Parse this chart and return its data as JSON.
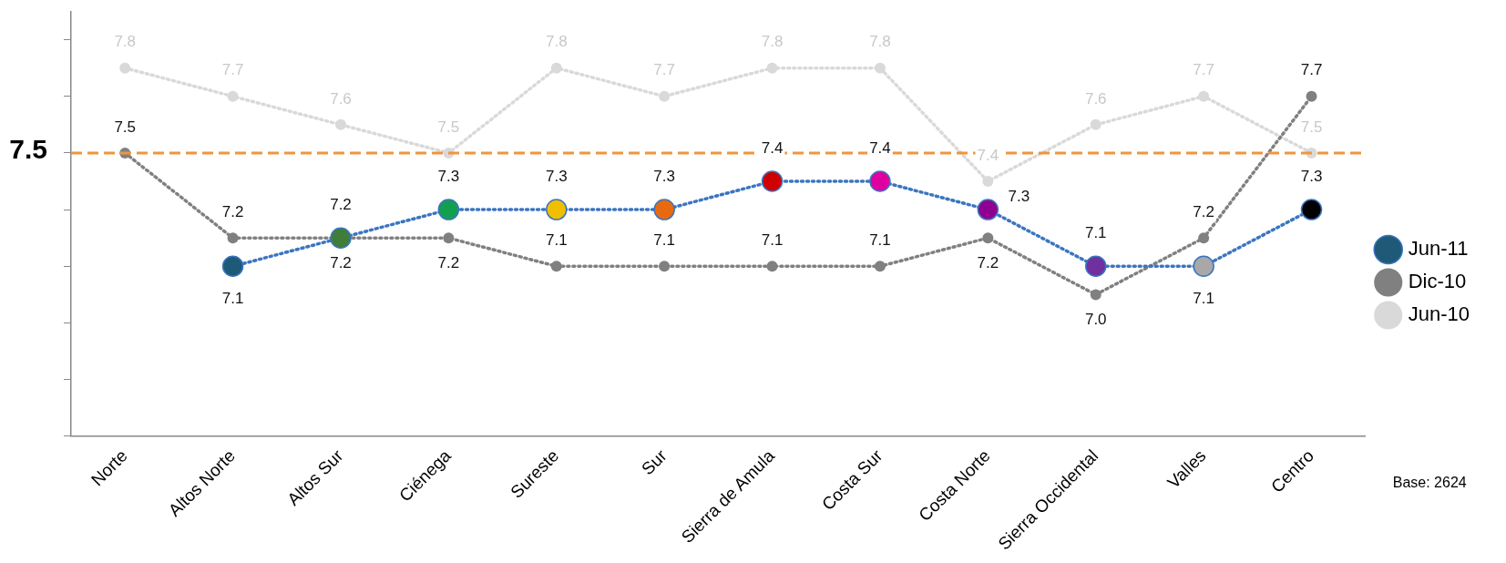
{
  "chart_data": {
    "type": "line",
    "categories": [
      "Norte",
      "Altos Norte",
      "Altos Sur",
      "Ciénega",
      "Sureste",
      "Sur",
      "Sierra de Amula",
      "Costa Sur",
      "Costa Norte",
      "Sierra Occidental",
      "Valles",
      "Centro"
    ],
    "series": [
      {
        "name": "Jun-11",
        "color": "#3b75c0",
        "colors": [
          "#1e5a78",
          "#1e5a78",
          "#3f7d3a",
          "#12a050",
          "#f0c000",
          "#e86a10",
          "#d00000",
          "#e000a0",
          "#900090",
          "#7030a0",
          "#a8a8a8",
          "#000000"
        ],
        "values": [
          null,
          7.1,
          7.2,
          7.3,
          7.3,
          7.3,
          7.4,
          7.4,
          7.3,
          7.1,
          7.1,
          7.3
        ],
        "value_labels": [
          null,
          "7.1",
          "7.2",
          "7.3",
          "7.3",
          "7.3",
          "7.4",
          "7.4",
          "7.3",
          "7.1",
          "7.1",
          "7.3"
        ]
      },
      {
        "name": "Dic-10",
        "color": "#808080",
        "values": [
          7.5,
          7.2,
          7.2,
          7.2,
          7.1,
          7.1,
          7.1,
          7.1,
          7.2,
          7.0,
          7.2,
          7.7
        ],
        "value_labels": [
          "7.5",
          "7.2",
          "7.2",
          "7.2",
          "7.1",
          "7.1",
          "7.1",
          "7.1",
          "7.2",
          "7.0",
          "7.2",
          "7.7"
        ]
      },
      {
        "name": "Jun-10",
        "color": "#d9d9d9",
        "values": [
          7.8,
          7.7,
          7.6,
          7.5,
          7.8,
          7.7,
          7.8,
          7.8,
          7.4,
          7.6,
          7.7,
          7.5
        ],
        "value_labels": [
          "7.8",
          "7.7",
          "7.6",
          "7.5",
          "7.8",
          "7.7",
          "7.8",
          "7.8",
          "7.4",
          "7.6",
          "7.7",
          "7.5"
        ]
      }
    ],
    "ylim": [
      6.5,
      8.0
    ],
    "yticks": [
      {
        "value": 6.5,
        "label": null
      },
      {
        "value": 6.7,
        "label": null
      },
      {
        "value": 6.9,
        "label": null
      },
      {
        "value": 7.1,
        "label": null
      },
      {
        "value": 7.3,
        "label": null
      },
      {
        "value": 7.5,
        "label": null
      },
      {
        "value": 7.7,
        "label": null
      },
      {
        "value": 7.9,
        "label": null
      }
    ],
    "tick_labels": "x",
    "ref_lines": [
      {
        "axis": "y",
        "value": 7.5,
        "label": "7.5",
        "color": "#f0953c",
        "line_style": "dashed"
      }
    ],
    "data_labels": true,
    "marker": "circle",
    "line_style": "dotted",
    "legend": "right",
    "annotations": [
      "Base: 2624"
    ]
  }
}
